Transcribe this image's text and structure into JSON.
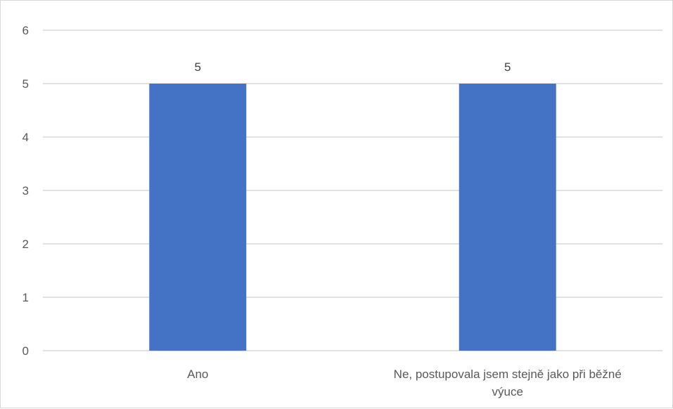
{
  "chart_data": {
    "type": "bar",
    "title": "",
    "xlabel": "",
    "ylabel": "",
    "categories": [
      "Ano",
      "Ne, postupovala jsem stejně jako při běžné výuce"
    ],
    "category_label_lines": [
      [
        "Ano"
      ],
      [
        "Ne, postupovala jsem stejně jako při běžné",
        "výuce"
      ]
    ],
    "series": [
      {
        "values": [
          5,
          5
        ],
        "color": "#4472c4"
      }
    ],
    "ylim": [
      0,
      6
    ],
    "yticks": [
      0,
      1,
      2,
      3,
      4,
      5,
      6
    ],
    "data_labels": true,
    "grid": true,
    "legend": "none"
  }
}
